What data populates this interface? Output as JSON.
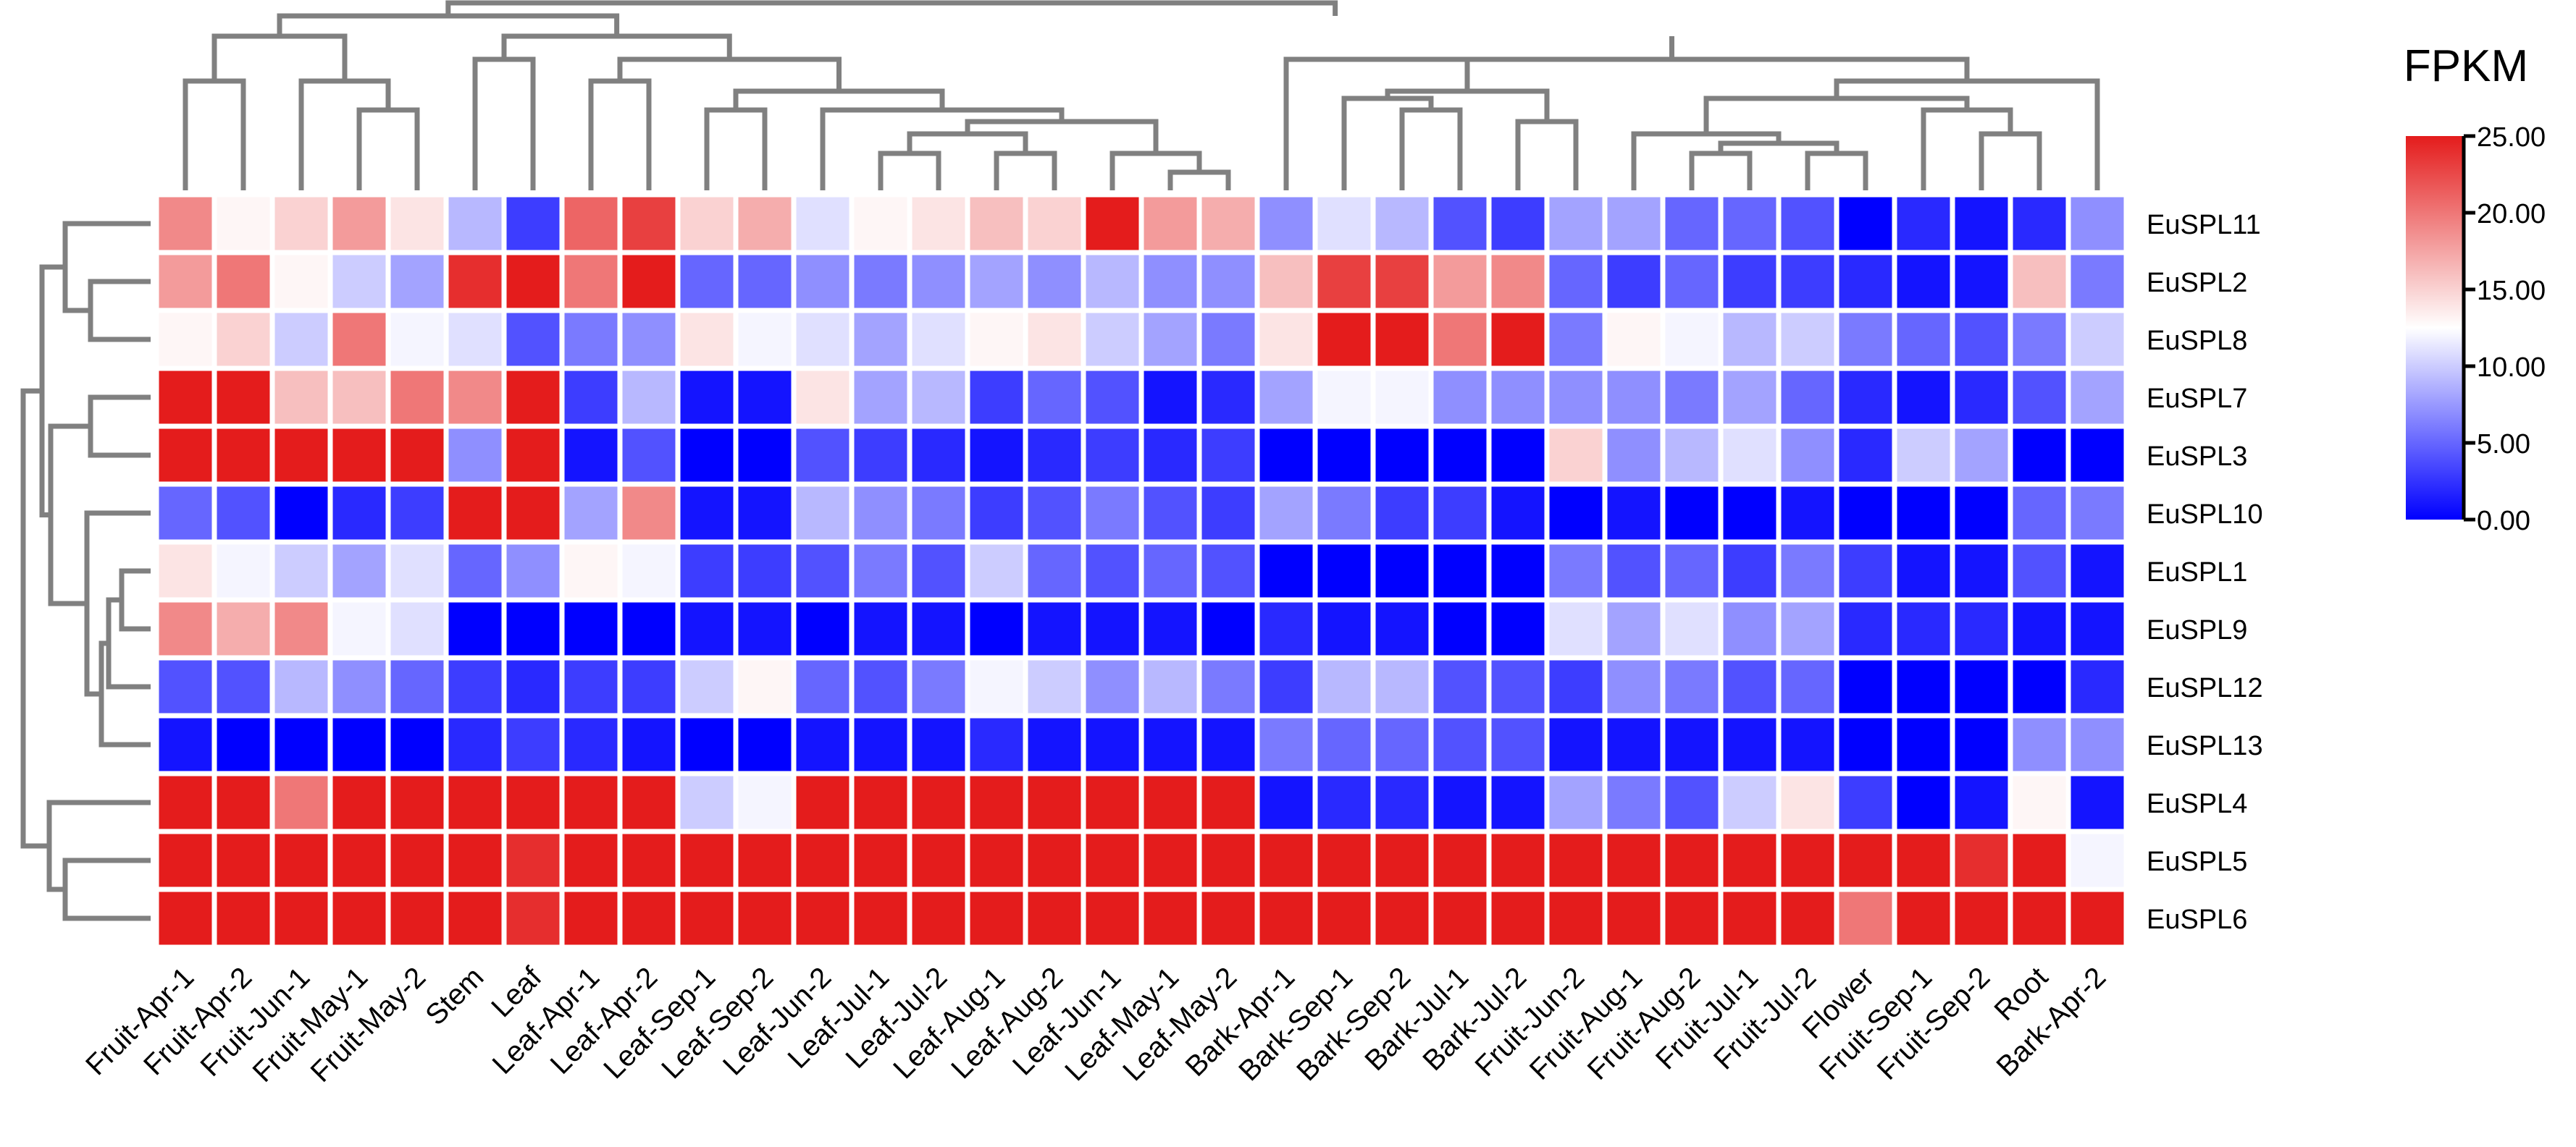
{
  "chart_data": {
    "type": "heatmap",
    "title": "",
    "columns": [
      "Fruit-Apr-1",
      "Fruit-Apr-2",
      "Fruit-Jun-1",
      "Fruit-May-1",
      "Fruit-May-2",
      "Stem",
      "Leaf",
      "Leaf-Apr-1",
      "Leaf-Apr-2",
      "Leaf-Sep-1",
      "Leaf-Sep-2",
      "Leaf-Jun-2",
      "Leaf-Jul-1",
      "Leaf-Jul-2",
      "Leaf-Aug-1",
      "Leaf-Aug-2",
      "Leaf-Jun-1",
      "Leaf-May-1",
      "Leaf-May-2",
      "Bark-Apr-1",
      "Bark-Sep-1",
      "Bark-Sep-2",
      "Bark-Jul-1",
      "Bark-Jul-2",
      "Fruit-Jun-2",
      "Fruit-Aug-1",
      "Fruit-Aug-2",
      "Fruit-Jul-1",
      "Fruit-Jul-2",
      "Flower",
      "Fruit-Sep-1",
      "Fruit-Sep-2",
      "Root",
      "Bark-Apr-2"
    ],
    "rows": [
      "EuSPL11",
      "EuSPL2",
      "EuSPL8",
      "EuSPL7",
      "EuSPL3",
      "EuSPL10",
      "EuSPL1",
      "EuSPL9",
      "EuSPL12",
      "EuSPL13",
      "EuSPL4",
      "EuSPL5",
      "EuSPL6"
    ],
    "values": [
      [
        19,
        13,
        15,
        18,
        14,
        9,
        3,
        21,
        23,
        15,
        17,
        11,
        13,
        14,
        16,
        15,
        25,
        18,
        17,
        7,
        11,
        9,
        4,
        3,
        8,
        8,
        5,
        5,
        4,
        0,
        2,
        1,
        2,
        7
      ],
      [
        18,
        20,
        13,
        10,
        8,
        24,
        25,
        20,
        25,
        5,
        5,
        7,
        6,
        7,
        8,
        7,
        9,
        7,
        7,
        16,
        23,
        23,
        18,
        19,
        5,
        3,
        5,
        3,
        3,
        2,
        1,
        1,
        16,
        6
      ],
      [
        13,
        15,
        10,
        20,
        12,
        11,
        4,
        6,
        7,
        14,
        12,
        11,
        8,
        11,
        13,
        14,
        10,
        8,
        6,
        14,
        25,
        25,
        20,
        25,
        6,
        13,
        12,
        9,
        10,
        6,
        5,
        4,
        6,
        10
      ],
      [
        25,
        25,
        16,
        16,
        20,
        19,
        25,
        3,
        9,
        1,
        1,
        14,
        8,
        9,
        3,
        5,
        4,
        1,
        2,
        8,
        12,
        12,
        7,
        7,
        7,
        7,
        6,
        8,
        5,
        2,
        1,
        2,
        4,
        8
      ],
      [
        25,
        25,
        25,
        25,
        25,
        7,
        25,
        1,
        4,
        0,
        0,
        4,
        3,
        2,
        1,
        2,
        3,
        2,
        3,
        0,
        0,
        0,
        0,
        0,
        15,
        7,
        9,
        11,
        7,
        2,
        10,
        8,
        0,
        0
      ],
      [
        5,
        4,
        0,
        2,
        3,
        25,
        25,
        8,
        19,
        1,
        1,
        9,
        7,
        6,
        3,
        4,
        6,
        4,
        3,
        8,
        6,
        3,
        3,
        1,
        0,
        1,
        0,
        0,
        1,
        0,
        0,
        0,
        5,
        6
      ],
      [
        14,
        12,
        10,
        8,
        11,
        5,
        7,
        13,
        12,
        3,
        3,
        4,
        6,
        4,
        10,
        5,
        4,
        5,
        4,
        0,
        0,
        0,
        0,
        0,
        6,
        4,
        5,
        3,
        6,
        3,
        1,
        1,
        4,
        1
      ],
      [
        19,
        17,
        19,
        12,
        11,
        0,
        0,
        0,
        0,
        1,
        1,
        0,
        1,
        1,
        0,
        1,
        1,
        1,
        0,
        2,
        1,
        1,
        0,
        0,
        11,
        8,
        11,
        7,
        8,
        2,
        2,
        2,
        1,
        1
      ],
      [
        4,
        4,
        9,
        7,
        5,
        3,
        2,
        3,
        3,
        10,
        13,
        5,
        4,
        6,
        12,
        10,
        7,
        9,
        6,
        3,
        9,
        9,
        4,
        4,
        3,
        7,
        6,
        4,
        5,
        0,
        0,
        0,
        0,
        2
      ],
      [
        1,
        0,
        0,
        0,
        0,
        2,
        3,
        2,
        1,
        0,
        0,
        1,
        1,
        1,
        2,
        1,
        1,
        1,
        1,
        6,
        5,
        5,
        4,
        4,
        1,
        1,
        1,
        1,
        1,
        0,
        0,
        0,
        7,
        7
      ],
      [
        25,
        25,
        20,
        25,
        25,
        25,
        25,
        25,
        25,
        10,
        12,
        25,
        25,
        25,
        25,
        25,
        25,
        25,
        25,
        1,
        2,
        2,
        1,
        1,
        8,
        6,
        4,
        10,
        14,
        3,
        0,
        1,
        13,
        1
      ],
      [
        25,
        25,
        25,
        25,
        25,
        25,
        24,
        25,
        25,
        25,
        25,
        25,
        25,
        25,
        25,
        25,
        25,
        25,
        25,
        25,
        25,
        25,
        25,
        25,
        25,
        25,
        25,
        25,
        25,
        25,
        25,
        24,
        25,
        12
      ],
      [
        25,
        25,
        25,
        25,
        25,
        25,
        24,
        25,
        25,
        25,
        25,
        25,
        25,
        25,
        25,
        25,
        25,
        25,
        25,
        25,
        25,
        25,
        25,
        25,
        25,
        25,
        25,
        25,
        25,
        20,
        25,
        25,
        25,
        25
      ]
    ],
    "color_scale": {
      "min": 0,
      "max": 25,
      "low": "#0000ff",
      "mid": "#ffffff",
      "high": "#e41c1c"
    },
    "legend": {
      "title": "FPKM",
      "tick_labels": [
        "25.00",
        "20.00",
        "15.00",
        "10.00",
        "5.00",
        "0.00"
      ],
      "tick_values": [
        25,
        20,
        15,
        10,
        5,
        0
      ]
    },
    "grid_color": "#ffffff",
    "dendrogram_color": "#808080"
  }
}
